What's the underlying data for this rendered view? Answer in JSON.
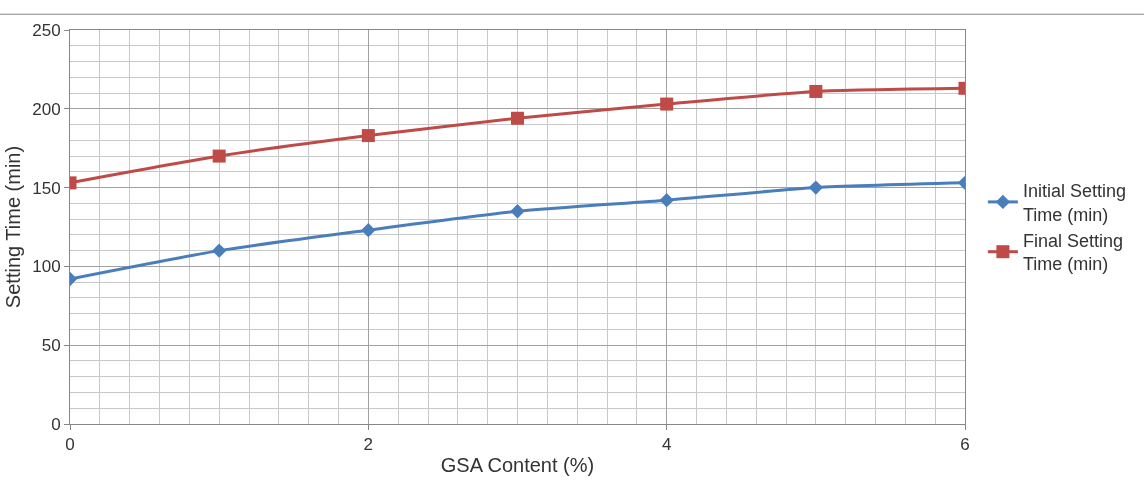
{
  "chart_data": {
    "type": "line",
    "xlabel": "GSA Content (%)",
    "ylabel": "Setting Time (min)",
    "x": [
      0,
      1,
      2,
      3,
      4,
      5,
      6
    ],
    "series": [
      {
        "name": "Initial Setting Time (min)",
        "color": "#4a7ebb",
        "marker": "diamond",
        "values": [
          92,
          110,
          123,
          135,
          142,
          150,
          153
        ]
      },
      {
        "name": "Final Setting Time (min)",
        "color": "#be4b48",
        "marker": "square",
        "values": [
          153,
          170,
          183,
          194,
          203,
          211,
          213
        ]
      }
    ],
    "xlim": [
      0,
      6
    ],
    "xticks": [
      0,
      2,
      4,
      6
    ],
    "ylim": [
      0,
      250
    ],
    "yticks": [
      0,
      50,
      100,
      150,
      200,
      250
    ],
    "grid": true,
    "legend": "right",
    "line_style": "solid"
  }
}
